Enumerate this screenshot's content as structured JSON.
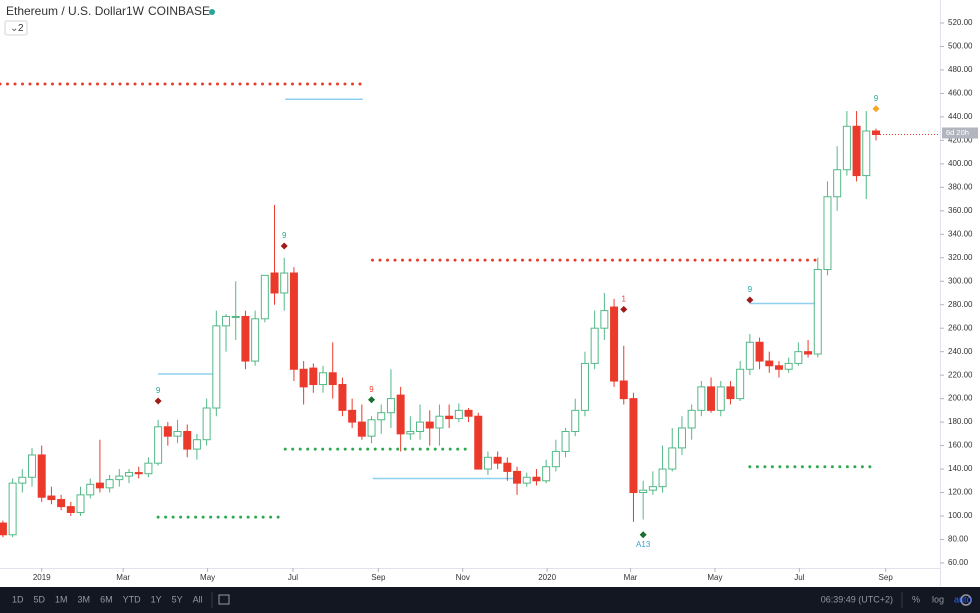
{
  "chart_data": {
    "type": "candlestick",
    "title": "Ethereum / U.S. Dollar",
    "interval": "1W",
    "exchange": "COINBASE",
    "indicator_count": "2",
    "countdown": "6d 20h",
    "up_color": "#53b987",
    "down_color": "#eb3a2c",
    "xlim": [
      -0.3,
      96.6
    ],
    "ylim": [
      55.7,
      539.6
    ],
    "xticks": [
      {
        "value": 4.0,
        "label": "2019"
      },
      {
        "value": 12.4,
        "label": "Mar"
      },
      {
        "value": 21.1,
        "label": "May"
      },
      {
        "value": 29.9,
        "label": "Jul"
      },
      {
        "value": 38.7,
        "label": "Sep"
      },
      {
        "value": 47.4,
        "label": "Nov"
      },
      {
        "value": 56.1,
        "label": "2020"
      },
      {
        "value": 64.7,
        "label": "Mar"
      },
      {
        "value": 73.4,
        "label": "May"
      },
      {
        "value": 82.1,
        "label": "Jul"
      },
      {
        "value": 91.0,
        "label": "Sep"
      }
    ],
    "yticks": [
      {
        "value": 60,
        "label": "60.00"
      },
      {
        "value": 80,
        "label": "80.00"
      },
      {
        "value": 100,
        "label": "100.00"
      },
      {
        "value": 120,
        "label": "120.00"
      },
      {
        "value": 140,
        "label": "140.00"
      },
      {
        "value": 160,
        "label": "160.00"
      },
      {
        "value": 180,
        "label": "180.00"
      },
      {
        "value": 200,
        "label": "200.00"
      },
      {
        "value": 220,
        "label": "220.00"
      },
      {
        "value": 240,
        "label": "240.00"
      },
      {
        "value": 260,
        "label": "260.00"
      },
      {
        "value": 280,
        "label": "280.00"
      },
      {
        "value": 300,
        "label": "300.00"
      },
      {
        "value": 320,
        "label": "320.00"
      },
      {
        "value": 340,
        "label": "340.00"
      },
      {
        "value": 360,
        "label": "360.00"
      },
      {
        "value": 380,
        "label": "380.00"
      },
      {
        "value": 400,
        "label": "400.00"
      },
      {
        "value": 420,
        "label": "420.00"
      },
      {
        "value": 440,
        "label": "440.00"
      },
      {
        "value": 460,
        "label": "460.00"
      },
      {
        "value": 480,
        "label": "480.00"
      },
      {
        "value": 500,
        "label": "500.00"
      },
      {
        "value": 520,
        "label": "520.00"
      }
    ],
    "open": [
      94,
      84,
      128,
      133,
      152,
      117,
      114,
      108,
      103,
      118,
      128,
      124,
      131,
      134,
      137,
      136,
      145,
      176,
      168,
      172,
      157,
      165,
      192,
      262,
      270,
      270,
      232,
      268,
      307,
      290,
      307,
      225,
      226,
      212,
      222,
      212,
      190,
      180,
      168,
      182,
      188,
      203,
      170,
      172,
      180,
      175,
      185,
      183,
      190,
      185,
      140,
      150,
      145,
      138,
      128,
      133,
      130,
      142,
      155,
      172,
      190,
      230,
      260,
      278,
      215,
      200,
      120,
      122,
      125,
      140,
      158,
      175,
      190,
      210,
      190,
      210,
      200,
      225,
      248,
      232,
      228,
      225,
      230,
      240,
      238,
      310,
      372,
      395,
      432,
      390,
      428
    ],
    "high": [
      96,
      132,
      140,
      158,
      160,
      125,
      118,
      112,
      125,
      132,
      165,
      135,
      140,
      140,
      142,
      150,
      182,
      180,
      182,
      178,
      170,
      200,
      275,
      272,
      300,
      275,
      275,
      305,
      365,
      320,
      312,
      232,
      230,
      228,
      248,
      218,
      200,
      195,
      185,
      195,
      225,
      210,
      185,
      195,
      190,
      195,
      195,
      196,
      192,
      188,
      155,
      155,
      150,
      142,
      137,
      140,
      148,
      165,
      175,
      200,
      240,
      275,
      290,
      285,
      245,
      205,
      130,
      138,
      160,
      175,
      185,
      195,
      215,
      218,
      215,
      215,
      232,
      255,
      252,
      240,
      232,
      235,
      248,
      250,
      320,
      385,
      415,
      445,
      445,
      445,
      430
    ],
    "low": [
      82,
      82,
      120,
      125,
      112,
      110,
      105,
      100,
      100,
      115,
      120,
      120,
      125,
      128,
      132,
      133,
      143,
      160,
      162,
      150,
      148,
      160,
      185,
      240,
      250,
      225,
      228,
      265,
      280,
      275,
      215,
      195,
      205,
      205,
      200,
      185,
      175,
      165,
      162,
      170,
      175,
      155,
      165,
      165,
      160,
      160,
      175,
      180,
      180,
      140,
      135,
      140,
      130,
      118,
      125,
      126,
      128,
      138,
      150,
      168,
      185,
      225,
      250,
      210,
      195,
      95,
      97,
      118,
      120,
      138,
      152,
      165,
      185,
      188,
      185,
      195,
      198,
      220,
      225,
      222,
      218,
      222,
      228,
      235,
      235,
      305,
      360,
      390,
      385,
      370,
      420
    ],
    "close": [
      84,
      128,
      133,
      152,
      116,
      114,
      108,
      103,
      118,
      127,
      124,
      131,
      134,
      137,
      136,
      145,
      176,
      168,
      172,
      157,
      165,
      192,
      262,
      270,
      270,
      232,
      268,
      305,
      290,
      307,
      225,
      210,
      212,
      222,
      212,
      190,
      180,
      168,
      182,
      188,
      200,
      170,
      172,
      180,
      175,
      185,
      183,
      190,
      185,
      140,
      150,
      145,
      138,
      128,
      133,
      130,
      142,
      155,
      172,
      190,
      230,
      260,
      275,
      215,
      200,
      120,
      122,
      125,
      140,
      158,
      175,
      190,
      210,
      190,
      210,
      200,
      225,
      248,
      232,
      228,
      225,
      230,
      240,
      238,
      310,
      372,
      395,
      432,
      390,
      428,
      425
    ],
    "levels": [
      {
        "value": 468,
        "from": -0.3,
        "to": 37.4,
        "color": "#eb3a2c",
        "style": "dotted"
      },
      {
        "value": 318,
        "from": 38.1,
        "to": 84.2,
        "color": "#eb3a2c",
        "style": "dotted"
      },
      {
        "value": 99,
        "from": 16.0,
        "to": 28.4,
        "color": "#2ea84f",
        "style": "dotted"
      },
      {
        "value": 157,
        "from": 29.1,
        "to": 48.2,
        "color": "#2ea84f",
        "style": "dotted"
      },
      {
        "value": 142,
        "from": 77.0,
        "to": 89.4,
        "color": "#2ea84f",
        "style": "dotted"
      },
      {
        "value": 221,
        "from": 16.0,
        "to": 22.1,
        "color": "#8fd0f0",
        "style": "solid"
      },
      {
        "value": 455,
        "from": 29.1,
        "to": 37.1,
        "color": "#8fd0f0",
        "style": "solid"
      },
      {
        "value": 132,
        "from": 38.1,
        "to": 53.3,
        "color": "#8fd0f0",
        "style": "solid"
      },
      {
        "value": 281,
        "from": 77.0,
        "to": 84.2,
        "color": "#8fd0f0",
        "style": "solid"
      }
    ],
    "annotations": [
      {
        "text": "9",
        "x": 16,
        "y": 198,
        "color": "#26a69a",
        "marker": "#a11b1b"
      },
      {
        "text": "9",
        "x": 29,
        "y": 330,
        "color": "#26a69a",
        "marker": "#a11b1b"
      },
      {
        "text": "9",
        "x": 38,
        "y": 199,
        "color": "#eb3a2c",
        "marker": "#1b6e2e"
      },
      {
        "text": "9",
        "x": 77,
        "y": 284,
        "color": "#26a69a",
        "marker": "#a11b1b"
      },
      {
        "text": "9",
        "x": 90,
        "y": 447,
        "color": "#26a69a",
        "marker": "#f5a623"
      },
      {
        "text": "1",
        "x": 64,
        "y": 276,
        "color": "#eb3a2c",
        "marker": "#a11b1b"
      },
      {
        "text": "A13",
        "x": 66,
        "y": 84,
        "color": "#3ca0d8",
        "marker": "#1b6e2e"
      }
    ]
  },
  "toolbar": {
    "ranges": [
      "1D",
      "5D",
      "1M",
      "3M",
      "6M",
      "YTD",
      "1Y",
      "5Y",
      "All"
    ],
    "clock": "06:39:49 (UTC+2)",
    "options": [
      "%",
      "log",
      "auto"
    ]
  }
}
